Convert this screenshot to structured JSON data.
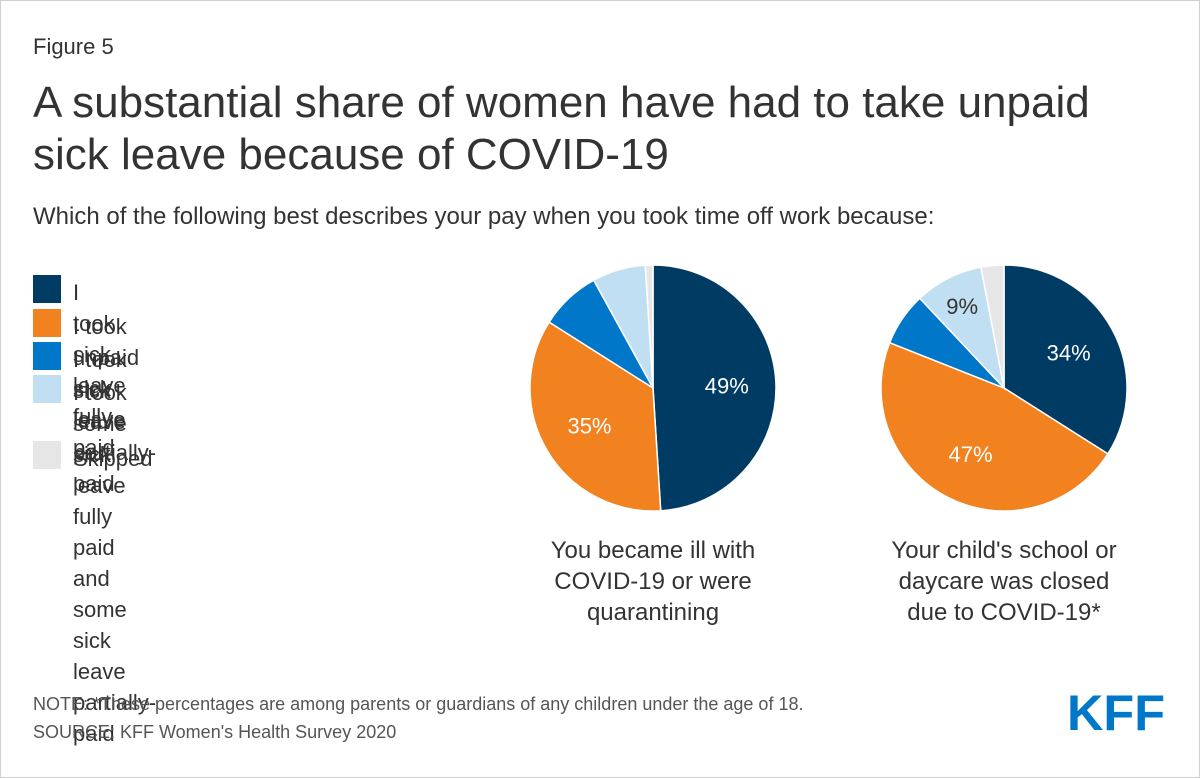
{
  "figure_label": "Figure 5",
  "title": "A substantial share of women have had to take unpaid sick leave because of COVID-19",
  "subtitle": "Which of the following best describes your pay when you took time off work because:",
  "legend": [
    {
      "label": "I took sick leave fully paid",
      "color": "#003b63"
    },
    {
      "label": "I took unpaid sick leave",
      "color": "#f28220"
    },
    {
      "label": "I took sick leave partially-paid",
      "color": "#0077c8"
    },
    {
      "label": "I took some sick leave fully paid\nand some sick leave partially-paid",
      "color": "#c0dff2"
    },
    {
      "label": "Skipped",
      "color": "#e6e6e6"
    }
  ],
  "chart_data": [
    {
      "type": "pie",
      "caption": "You became ill with\nCOVID-19 or were\nquarantining",
      "categories": [
        "I took sick leave fully paid",
        "I took unpaid sick leave",
        "I took sick leave partially-paid",
        "I took some sick leave fully paid and some sick leave partially-paid",
        "Skipped"
      ],
      "values": [
        49,
        35,
        8,
        7,
        1
      ],
      "labels": [
        "49%",
        "35%",
        "",
        "",
        ""
      ]
    },
    {
      "type": "pie",
      "caption": "Your child's school or\ndaycare was closed\ndue to COVID-19*",
      "categories": [
        "I took sick leave fully paid",
        "I took unpaid sick leave",
        "I took sick leave partially-paid",
        "I took some sick leave fully paid and some sick leave partially-paid",
        "Skipped"
      ],
      "values": [
        34,
        47,
        7,
        9,
        3
      ],
      "labels": [
        "34%",
        "47%",
        "",
        "9%",
        ""
      ]
    }
  ],
  "note": "NOTE: *These percentages are among parents or guardians of any children under the age of 18.",
  "source": "SOURCE: KFF Women's Health Survey 2020",
  "logo_text": "KFF",
  "logo_color": "#0077c8"
}
